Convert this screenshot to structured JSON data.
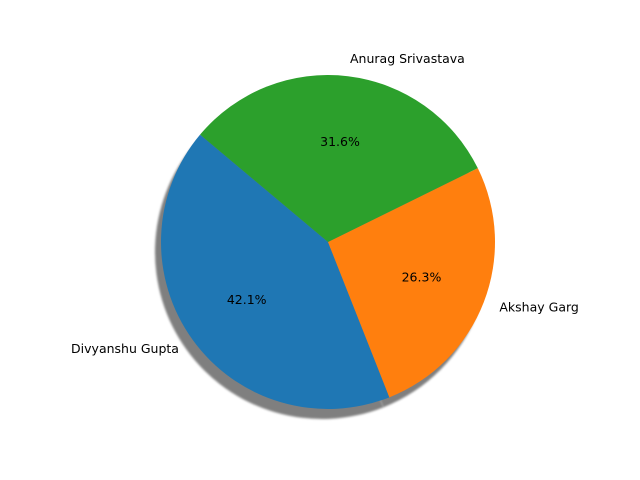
{
  "chart_data": {
    "type": "pie",
    "title": "",
    "categories": [
      "Divyanshu Gupta",
      "Akshay Garg",
      "Anurag Srivastava"
    ],
    "values": [
      42.1,
      26.3,
      31.6
    ],
    "percent_labels": [
      "42.1%",
      "26.3%",
      "31.6%"
    ],
    "colors": [
      "#1f77b4",
      "#ff7f0e",
      "#2ca02c"
    ],
    "start_angle_deg": 140,
    "shadow": true,
    "legend": false
  }
}
